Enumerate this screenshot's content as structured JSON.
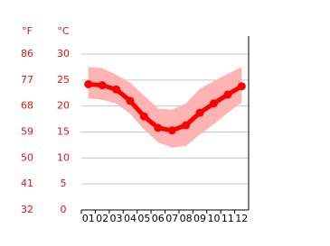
{
  "chart_data": {
    "type": "line",
    "y2_label": "°F",
    "y_label": "°C",
    "categories": [
      "01",
      "02",
      "03",
      "04",
      "05",
      "06",
      "07",
      "08",
      "09",
      "10",
      "11",
      "12"
    ],
    "series": [
      {
        "color": "#ff0000",
        "values": [
          24.2,
          24.0,
          23.2,
          21.0,
          18.0,
          15.8,
          15.3,
          16.3,
          18.7,
          20.5,
          22.2,
          23.8
        ]
      }
    ],
    "range": {
      "color": "#ffb3b3",
      "high": [
        27.5,
        27.3,
        26.0,
        24.5,
        22.0,
        19.5,
        19.3,
        20.5,
        23.3,
        24.8,
        26.2,
        27.5
      ],
      "low": [
        21.5,
        21.2,
        20.5,
        18.5,
        15.5,
        13.0,
        12.0,
        12.3,
        14.5,
        16.5,
        18.7,
        20.7
      ]
    },
    "ylim": [
      0,
      30
    ],
    "yticks": [
      0,
      5,
      10,
      15,
      20,
      25,
      30
    ],
    "y2lim": [
      32,
      86
    ],
    "y2ticks": [
      32,
      41,
      50,
      59,
      68,
      77,
      86
    ],
    "grid": true
  }
}
